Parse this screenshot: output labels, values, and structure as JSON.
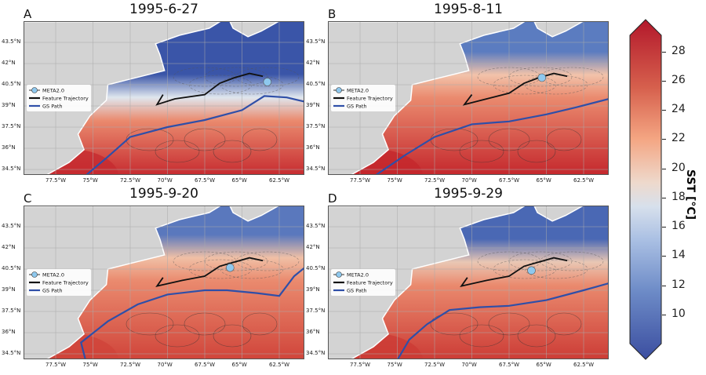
{
  "chart_data": [
    {
      "type": "map",
      "panel_label": "A",
      "title": "1995-6-27",
      "north_color": "#3a55a8",
      "mid_color": "#dfe6ee",
      "south_color": "#c62a2f",
      "front_lat": 39.6,
      "gs_path": [
        [
          -75.5,
          34.06
        ],
        [
          -74,
          35.4
        ],
        [
          -72.5,
          36.8
        ],
        [
          -70,
          37.5
        ],
        [
          -67.5,
          38.0
        ],
        [
          -65,
          38.7
        ],
        [
          -63.5,
          39.7
        ],
        [
          -62,
          39.6
        ],
        [
          -60.8,
          39.3
        ]
      ],
      "trajectory": [
        [
          -70.3,
          39.8
        ],
        [
          -70.7,
          39.1
        ],
        [
          -69.5,
          39.5
        ],
        [
          -67.5,
          39.8
        ],
        [
          -66.5,
          40.6
        ],
        [
          -65.5,
          41.0
        ],
        [
          -64.5,
          41.3
        ],
        [
          -63.6,
          41.1
        ]
      ],
      "meta_point": [
        -63.3,
        40.7
      ]
    },
    {
      "type": "map",
      "panel_label": "B",
      "title": "1995-8-11",
      "north_color": "#5b7cc0",
      "mid_color": "#f2c3aa",
      "south_color": "#c4272c",
      "front_lat": 41.2,
      "gs_path": [
        [
          -76.5,
          34.06
        ],
        [
          -74.5,
          35.5
        ],
        [
          -72.5,
          36.8
        ],
        [
          -70,
          37.7
        ],
        [
          -67.5,
          37.9
        ],
        [
          -65,
          38.4
        ],
        [
          -63,
          38.9
        ],
        [
          -60.8,
          39.5
        ]
      ],
      "trajectory": [
        [
          -70.0,
          39.8
        ],
        [
          -70.5,
          39.1
        ],
        [
          -69,
          39.5
        ],
        [
          -67.5,
          39.9
        ],
        [
          -66.5,
          40.6
        ],
        [
          -65.5,
          41.0
        ],
        [
          -64.5,
          41.3
        ],
        [
          -63.6,
          41.1
        ]
      ],
      "meta_point": [
        -65.3,
        41.0
      ]
    },
    {
      "type": "map",
      "panel_label": "C",
      "title": "1995-9-20",
      "north_color": "#5a78bd",
      "mid_color": "#f0c0a6",
      "south_color": "#d0443a",
      "front_lat": 41.3,
      "gs_path": [
        [
          -75.5,
          34.06
        ],
        [
          -75.8,
          35.3
        ],
        [
          -74,
          36.8
        ],
        [
          -72,
          38.0
        ],
        [
          -70,
          38.7
        ],
        [
          -67.5,
          39.0
        ],
        [
          -66,
          39.0
        ],
        [
          -64,
          38.8
        ],
        [
          -62.5,
          38.6
        ],
        [
          -61.5,
          40.0
        ],
        [
          -60.8,
          40.6
        ]
      ],
      "trajectory": [
        [
          -70.3,
          39.9
        ],
        [
          -70.7,
          39.3
        ],
        [
          -69,
          39.7
        ],
        [
          -67.5,
          40.0
        ],
        [
          -66.5,
          40.7
        ],
        [
          -65.5,
          41.0
        ],
        [
          -64.5,
          41.3
        ],
        [
          -63.6,
          41.1
        ]
      ],
      "meta_point": [
        -65.8,
        40.6
      ]
    },
    {
      "type": "map",
      "panel_label": "D",
      "title": "1995-9-29",
      "north_color": "#4a68b4",
      "mid_color": "#e9c7b4",
      "south_color": "#cc3b35",
      "front_lat": 41.0,
      "gs_path": [
        [
          -75.0,
          34.06
        ],
        [
          -74.2,
          35.5
        ],
        [
          -73,
          36.6
        ],
        [
          -71.5,
          37.6
        ],
        [
          -69.5,
          37.8
        ],
        [
          -67.5,
          37.9
        ],
        [
          -65,
          38.3
        ],
        [
          -62.5,
          39.0
        ],
        [
          -60.8,
          39.5
        ]
      ],
      "trajectory": [
        [
          -70.3,
          39.9
        ],
        [
          -70.7,
          39.3
        ],
        [
          -69,
          39.7
        ],
        [
          -67.5,
          40.0
        ],
        [
          -66.5,
          40.7
        ],
        [
          -65.5,
          41.0
        ],
        [
          -64.5,
          41.3
        ],
        [
          -63.6,
          41.1
        ]
      ],
      "meta_point": [
        -66.0,
        40.4
      ]
    }
  ],
  "axes": {
    "lon_ticks": [
      "77.5°W",
      "75°W",
      "72.5°W",
      "70°W",
      "67.5°W",
      "65°W",
      "62.5°W"
    ],
    "lat_ticks": [
      "43.5°N",
      "42°N",
      "40.5°N",
      "39°N",
      "37.5°N",
      "36°N",
      "34.5°N"
    ]
  },
  "legend": {
    "meta": "META2.0",
    "trajectory": "Feature Trajectory",
    "gs": "GS Path"
  },
  "colors": {
    "land": "#d3d3d3",
    "trajectory": "#111111",
    "gs_path": "#2f4fa8",
    "meta_marker": "#8ec8ee"
  },
  "colorbar": {
    "label": "SST [°C]",
    "ticks": [
      "10",
      "12",
      "14",
      "16",
      "18",
      "20",
      "22",
      "24",
      "26",
      "28"
    ],
    "range": [
      8,
      29
    ],
    "colormap": "coolwarm"
  }
}
